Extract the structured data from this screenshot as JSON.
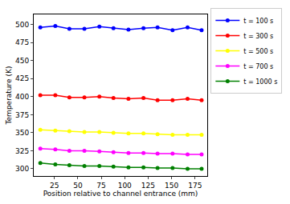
{
  "chart_data": {
    "type": "line",
    "x_label": "Position relative to channel entrance (mm)",
    "y_label": "Temperature (K)",
    "x": [
      10,
      26,
      41,
      57,
      73,
      88,
      104,
      120,
      135,
      151,
      167,
      182
    ],
    "series": [
      {
        "name": "t = 100 s",
        "color": "#0000ff",
        "marker": "circle",
        "values": [
          496,
          498,
          494,
          494,
          497,
          495,
          493,
          495,
          496,
          492,
          496,
          492
        ]
      },
      {
        "name": "t = 300 s",
        "color": "#ff0000",
        "marker": "circle",
        "values": [
          402,
          402,
          399,
          399,
          400,
          398,
          397,
          398,
          395,
          395,
          397,
          395
        ]
      },
      {
        "name": "t = 500 s",
        "color": "#ffff00",
        "marker": "circle",
        "values": [
          354,
          353,
          352,
          351,
          351,
          350,
          349,
          349,
          348,
          347,
          347,
          347
        ]
      },
      {
        "name": "t = 700 s",
        "color": "#ff00ff",
        "marker": "circle",
        "values": [
          328,
          327,
          325,
          325,
          324,
          323,
          322,
          322,
          321,
          321,
          320,
          320
        ]
      },
      {
        "name": "t = 1000 s",
        "color": "#008000",
        "marker": "circle",
        "values": [
          308,
          306,
          305,
          304,
          304,
          303,
          302,
          302,
          301,
          301,
          300,
          300
        ]
      }
    ],
    "xlim": [
      3,
      188
    ],
    "xticks": [
      25,
      50,
      75,
      100,
      125,
      150,
      175
    ],
    "ylim": [
      290,
      514
    ],
    "yticks": [
      300,
      325,
      350,
      375,
      400,
      425,
      450,
      475,
      500
    ],
    "grid": false,
    "legend": "outside right"
  }
}
